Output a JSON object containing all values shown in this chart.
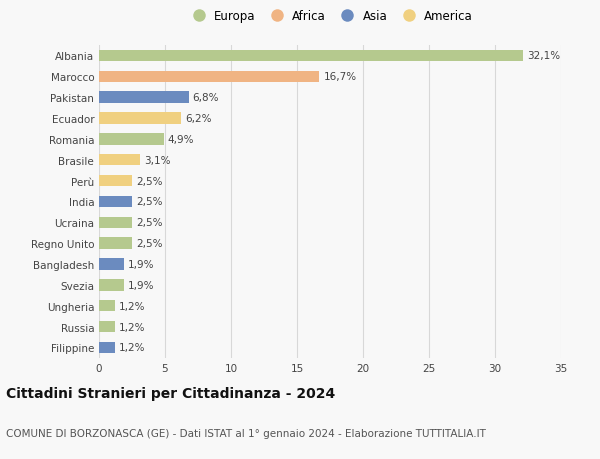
{
  "categories": [
    "Albania",
    "Marocco",
    "Pakistan",
    "Ecuador",
    "Romania",
    "Brasile",
    "Perù",
    "India",
    "Ucraina",
    "Regno Unito",
    "Bangladesh",
    "Svezia",
    "Ungheria",
    "Russia",
    "Filippine"
  ],
  "values": [
    32.1,
    16.7,
    6.8,
    6.2,
    4.9,
    3.1,
    2.5,
    2.5,
    2.5,
    2.5,
    1.9,
    1.9,
    1.2,
    1.2,
    1.2
  ],
  "labels": [
    "32,1%",
    "16,7%",
    "6,8%",
    "6,2%",
    "4,9%",
    "3,1%",
    "2,5%",
    "2,5%",
    "2,5%",
    "2,5%",
    "1,9%",
    "1,9%",
    "1,2%",
    "1,2%",
    "1,2%"
  ],
  "continents": [
    "Europa",
    "Africa",
    "Asia",
    "America",
    "Europa",
    "America",
    "America",
    "Asia",
    "Europa",
    "Europa",
    "Asia",
    "Europa",
    "Europa",
    "Europa",
    "Asia"
  ],
  "colors": {
    "Europa": "#b5c98e",
    "Africa": "#f0b483",
    "Asia": "#6b8bbf",
    "America": "#f0d080"
  },
  "legend_order": [
    "Europa",
    "Africa",
    "Asia",
    "America"
  ],
  "xlim": [
    0,
    35
  ],
  "xticks": [
    0,
    5,
    10,
    15,
    20,
    25,
    30,
    35
  ],
  "title": "Cittadini Stranieri per Cittadinanza - 2024",
  "subtitle": "COMUNE DI BORZONASCA (GE) - Dati ISTAT al 1° gennaio 2024 - Elaborazione TUTTITALIA.IT",
  "background_color": "#f8f8f8",
  "grid_color": "#d8d8d8",
  "bar_height": 0.55,
  "label_fontsize": 7.5,
  "tick_fontsize": 7.5,
  "title_fontsize": 10,
  "subtitle_fontsize": 7.5
}
